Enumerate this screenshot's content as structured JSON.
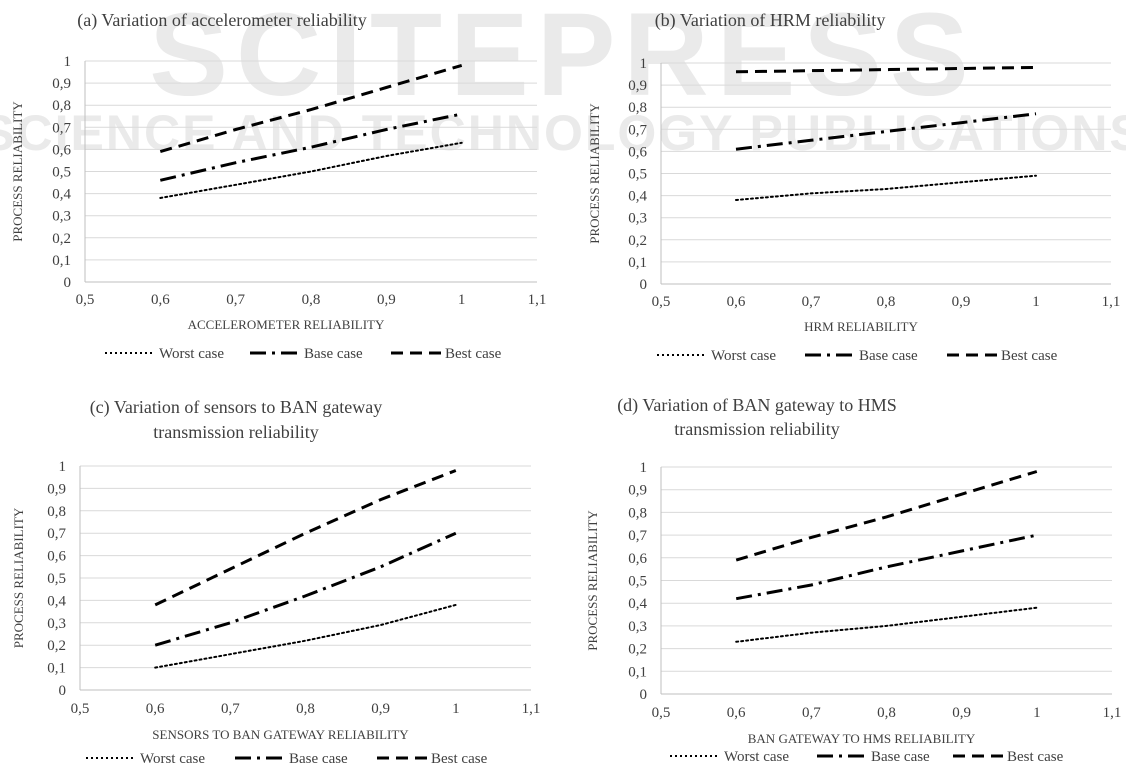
{
  "watermark": {
    "line1": "SCITEPRESS",
    "line2": "SCIENCE AND TECHNOLOGY PUBLICATIONS"
  },
  "colors": {
    "axis_text": "#404040",
    "grid": "#d9d9d9",
    "series": "#000000",
    "watermark": "#e8e8e8"
  },
  "chart_data": [
    {
      "type": "line",
      "title": [
        "(a) Variation of accelerometer reliability"
      ],
      "xlabel": "ACCELEROMETER RELIABILITY",
      "ylabel": "PROCESS RELIABILITY",
      "xlim": [
        0.5,
        1.1
      ],
      "ylim": [
        0,
        1
      ],
      "xticks": [
        "0,5",
        "0,6",
        "0,7",
        "0,8",
        "0,9",
        "1",
        "1,1"
      ],
      "yticks": [
        "0",
        "0,1",
        "0,2",
        "0,3",
        "0,4",
        "0,5",
        "0,6",
        "0,7",
        "0,8",
        "0,9",
        "1"
      ],
      "grid": "horizontal",
      "legend": "bottom",
      "x": [
        0.6,
        0.7,
        0.8,
        0.9,
        1.0
      ],
      "series": [
        {
          "name": "Worst case",
          "style": "dotted",
          "values": [
            0.38,
            0.44,
            0.5,
            0.57,
            0.63
          ]
        },
        {
          "name": "Base case",
          "style": "dash-dot",
          "values": [
            0.46,
            0.54,
            0.61,
            0.69,
            0.76
          ]
        },
        {
          "name": "Best case",
          "style": "dashed",
          "values": [
            0.59,
            0.69,
            0.78,
            0.88,
            0.98
          ]
        }
      ]
    },
    {
      "type": "line",
      "title": [
        "(b) Variation of HRM reliability"
      ],
      "xlabel": "HRM RELIABILITY",
      "ylabel": "PROCESS RELIABILITY",
      "xlim": [
        0.5,
        1.1
      ],
      "ylim": [
        0,
        1
      ],
      "xticks": [
        "0,5",
        "0,6",
        "0,7",
        "0,8",
        "0,9",
        "1",
        "1,1"
      ],
      "yticks": [
        "0",
        "0,1",
        "0,2",
        "0,3",
        "0,4",
        "0,5",
        "0,6",
        "0,7",
        "0,8",
        "0,9",
        "1"
      ],
      "grid": "horizontal",
      "legend": "bottom",
      "x": [
        0.6,
        0.7,
        0.8,
        0.9,
        1.0
      ],
      "series": [
        {
          "name": "Worst case",
          "style": "dotted",
          "values": [
            0.38,
            0.41,
            0.43,
            0.46,
            0.49
          ]
        },
        {
          "name": "Base case",
          "style": "dash-dot",
          "values": [
            0.61,
            0.65,
            0.69,
            0.73,
            0.77
          ]
        },
        {
          "name": "Best case",
          "style": "dashed",
          "values": [
            0.96,
            0.965,
            0.97,
            0.975,
            0.98
          ]
        }
      ]
    },
    {
      "type": "line",
      "title": [
        "(c) Variation of sensors to BAN gateway",
        "transmission reliability"
      ],
      "xlabel": "SENSORS TO BAN GATEWAY RELIABILITY",
      "ylabel": "PROCESS RELIABILITY",
      "xlim": [
        0.5,
        1.1
      ],
      "ylim": [
        0,
        1
      ],
      "xticks": [
        "0,5",
        "0,6",
        "0,7",
        "0,8",
        "0,9",
        "1",
        "1,1"
      ],
      "yticks": [
        "0",
        "0,1",
        "0,2",
        "0,3",
        "0,4",
        "0,5",
        "0,6",
        "0,7",
        "0,8",
        "0,9",
        "1"
      ],
      "grid": "horizontal",
      "legend": "bottom",
      "x": [
        0.6,
        0.7,
        0.8,
        0.9,
        1.0
      ],
      "series": [
        {
          "name": "Worst case",
          "style": "dotted",
          "values": [
            0.1,
            0.16,
            0.22,
            0.29,
            0.38
          ]
        },
        {
          "name": "Base case",
          "style": "dash-dot",
          "values": [
            0.2,
            0.3,
            0.42,
            0.55,
            0.7
          ]
        },
        {
          "name": "Best case",
          "style": "dashed",
          "values": [
            0.38,
            0.54,
            0.7,
            0.85,
            0.98
          ]
        }
      ]
    },
    {
      "type": "line",
      "title": [
        "(d) Variation of BAN gateway to HMS",
        "transmission reliability"
      ],
      "xlabel": "BAN GATEWAY TO HMS RELIABILITY",
      "ylabel": "PROCESS RELIABILITY",
      "xlim": [
        0.5,
        1.1
      ],
      "ylim": [
        0,
        1
      ],
      "xticks": [
        "0,5",
        "0,6",
        "0,7",
        "0,8",
        "0,9",
        "1",
        "1,1"
      ],
      "yticks": [
        "0",
        "0,1",
        "0,2",
        "0,3",
        "0,4",
        "0,5",
        "0,6",
        "0,7",
        "0,8",
        "0,9",
        "1"
      ],
      "grid": "horizontal",
      "legend": "bottom",
      "x": [
        0.6,
        0.7,
        0.8,
        0.9,
        1.0
      ],
      "series": [
        {
          "name": "Worst case",
          "style": "dotted",
          "values": [
            0.23,
            0.27,
            0.3,
            0.34,
            0.38
          ]
        },
        {
          "name": "Base case",
          "style": "dash-dot",
          "values": [
            0.42,
            0.48,
            0.56,
            0.63,
            0.7
          ]
        },
        {
          "name": "Best case",
          "style": "dashed",
          "values": [
            0.59,
            0.69,
            0.78,
            0.88,
            0.98
          ]
        }
      ]
    }
  ]
}
